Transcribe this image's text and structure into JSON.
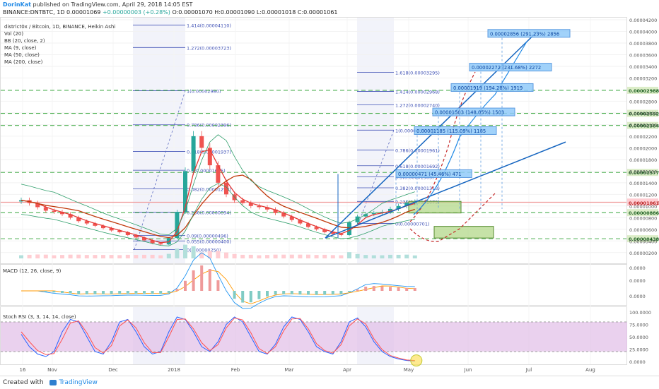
{
  "header": {
    "author": "DorinKat",
    "published": "published on TradingView.com, April 29, 2018 14:05 EST",
    "symbol": "BINANCE:DNTBTC, 1D",
    "last": "0.00001069",
    "change": "+0.00000003 (+0.28%)",
    "o": "O:0.00001070",
    "h": "H:0.00001090",
    "l": "L:0.00001018",
    "c": "C:0.00001061"
  },
  "footer": {
    "created": "Created with",
    "brand": "TradingView"
  },
  "legend": [
    "district0x / Bitcoin, 1D, BINANCE, Heikin Ashi",
    "Vol (20)",
    "BB (20, close, 2)",
    "MA (9, close)",
    "MA (50, close)",
    "MA (200, close)"
  ],
  "colors": {
    "bull": "#26a69a",
    "bear": "#ef5350",
    "ma9": "#e53935",
    "ma50": "#c0390b",
    "bb": "#2e9e6a",
    "fib": "#3f51b5",
    "green_level": "#4caf50",
    "trend": "#1565c0",
    "rsi_k": "#2962ff",
    "rsi_d": "#ff5252",
    "rsi_band": "#e1bee7"
  },
  "chart_data": [
    {
      "type": "candlestick",
      "title": "district0x / Bitcoin, 1D, BINANCE, Heikin Ashi",
      "ylim": [
        1e-07,
        4.2e-06
      ],
      "y_ticks": [
        "0.00004200",
        "0.00004000",
        "0.00003800",
        "0.00003600",
        "0.00003400",
        "0.00003200",
        "0.00002800",
        "0.00002600",
        "0.00002400",
        "0.00002200",
        "0.00002000",
        "0.00001800",
        "0.00001600",
        "0.00001400",
        "0.00001200",
        "0.00001000",
        "0.00000800",
        "0.00000600",
        "0.00000400",
        "0.00000200"
      ],
      "y_tick_values": [
        4.2e-06,
        4e-06,
        3.8e-06,
        3.6e-06,
        3.4e-06,
        3.2e-06,
        2.8e-06,
        2.6e-06,
        2.4e-06,
        2.2e-06,
        2e-06,
        1.8e-06,
        1.6e-06,
        1.4e-06,
        1.2e-06,
        1e-06,
        8e-07,
        6e-07,
        4e-07,
        2e-07
      ],
      "x_ticks": [
        "16",
        "Nov",
        "Dec",
        "2018",
        "Feb",
        "Mar",
        "Apr",
        "May",
        "Jun",
        "Jul",
        "Aug"
      ],
      "price_badges": [
        {
          "label": "0.00002988",
          "value": 2.988e-06,
          "kind": "green"
        },
        {
          "label": "0.00002592",
          "value": 2.592e-06,
          "kind": "green"
        },
        {
          "label": "0.00002384",
          "value": 2.384e-06,
          "kind": "green"
        },
        {
          "label": "0.00001577",
          "value": 1.577e-06,
          "kind": "green"
        },
        {
          "label": "0.00001068",
          "value": 1.068e-06,
          "kind": "red"
        },
        {
          "label": "0.00001061",
          "value": 1.061e-06,
          "kind": "red"
        },
        {
          "label": "0.00000886",
          "value": 8.86e-07,
          "kind": "green"
        },
        {
          "label": "0.00000438",
          "value": 4.38e-07,
          "kind": "green"
        }
      ],
      "fib_left": [
        {
          "label": "1.414(0.00004110)",
          "value": 4.11e-06
        },
        {
          "label": "1.272(0.00003723)",
          "value": 3.723e-06
        },
        {
          "label": "1(0.00002980)",
          "value": 2.98e-06
        },
        {
          "label": "0.786(0.00002396)",
          "value": 2.396e-06
        },
        {
          "label": "0.618(0.00001937)",
          "value": 1.937e-06
        },
        {
          "label": "0.5(0.00001615)",
          "value": 1.615e-06
        },
        {
          "label": "0.382(0.00001293)",
          "value": 1.293e-06
        },
        {
          "label": "0.236(0.00000894)",
          "value": 8.94e-07
        },
        {
          "label": "0.09(0.00000496)",
          "value": 4.96e-07
        },
        {
          "label": "0.055(0.00000400)",
          "value": 4e-07
        },
        {
          "label": "0(0.00000250)",
          "value": 2.5e-07
        }
      ],
      "fib_right": [
        {
          "label": "1.618(0.00003295)",
          "value": 3.295e-06
        },
        {
          "label": "1.414(0.00002968)",
          "value": 2.968e-06
        },
        {
          "label": "1.272(0.00002740)",
          "value": 2.74e-06
        },
        {
          "label": "1(0.00002304)",
          "value": 2.304e-06
        },
        {
          "label": "0.786(0.00001961)",
          "value": 1.961e-06
        },
        {
          "label": "0.618(0.00001692)",
          "value": 1.692e-06
        },
        {
          "label": "0.5(0.00001503)",
          "value": 1.503e-06
        },
        {
          "label": "0.382(0.00001313)",
          "value": 1.313e-06
        },
        {
          "label": "0.236(0.00001079)",
          "value": 1.079e-06
        },
        {
          "label": "0(0.00000701)",
          "value": 7.01e-07
        }
      ],
      "targets": [
        {
          "label": "0.00000471 (45.46%) 471",
          "value": 1.55e-06
        },
        {
          "label": "0.00001185 (115.09%) 1185",
          "value": 2.29e-06
        },
        {
          "label": "0.00001503 (148.05%) 1503",
          "value": 2.61e-06
        },
        {
          "label": "0.00001919 (194.28%) 1919",
          "value": 3.03e-06
        },
        {
          "label": "0.00002272 (231.68%) 2272",
          "value": 3.38e-06
        },
        {
          "label": "0.00002856 (291.23%) 2856",
          "value": 3.96e-06
        }
      ],
      "closes": [
        1.1e-06,
        1.05e-06,
        9.8e-07,
        9.2e-07,
        9e-07,
        8.6e-07,
        8e-07,
        7.4e-07,
        7e-07,
        6.6e-07,
        6.2e-07,
        5.8e-07,
        5.5e-07,
        5e-07,
        4.6e-07,
        4.1e-07,
        3.6e-07,
        3.4e-07,
        4.5e-07,
        9e-07,
        1.6e-06,
        2.2e-06,
        2e-06,
        1.7e-06,
        1.4e-06,
        1.2e-06,
        1.1e-06,
        1.05e-06,
        1e-06,
        9.8e-07,
        9.4e-07,
        8.8e-07,
        8.2e-07,
        7.6e-07,
        7e-07,
        6.4e-07,
        6e-07,
        5.5e-07,
        5.2e-07,
        5e-07,
        7.2e-07,
        8.2e-07,
        8.6e-07,
        8.8e-07,
        9e-07,
        9.5e-07,
        1e-06,
        1.06e-06,
        1.07e-06
      ]
    },
    {
      "type": "line",
      "title": "MACD (12, 26, close, 9)",
      "y_ticks": [
        "0.0000",
        "0.0000",
        "0.0000"
      ]
    },
    {
      "type": "line",
      "title": "Stoch RSI (3, 3, 14, 14, close)",
      "ylim": [
        0,
        100
      ],
      "y_ticks": [
        "100.0000",
        "75.0000",
        "50.0000",
        "25.0000",
        "0.0000"
      ],
      "y_tick_values": [
        100,
        75,
        50,
        25,
        0
      ],
      "k": [
        55,
        30,
        15,
        10,
        20,
        60,
        85,
        80,
        50,
        20,
        15,
        40,
        80,
        85,
        60,
        30,
        15,
        20,
        60,
        90,
        85,
        60,
        30,
        20,
        40,
        75,
        90,
        80,
        50,
        20,
        15,
        35,
        70,
        90,
        85,
        60,
        30,
        20,
        15,
        40,
        80,
        88,
        70,
        40,
        20,
        10,
        5,
        2,
        1
      ],
      "d": [
        60,
        40,
        22,
        14,
        16,
        45,
        78,
        82,
        58,
        28,
        17,
        32,
        72,
        84,
        68,
        38,
        18,
        18,
        50,
        85,
        86,
        66,
        38,
        22,
        34,
        68,
        88,
        84,
        58,
        26,
        16,
        30,
        62,
        86,
        87,
        66,
        36,
        22,
        17,
        34,
        72,
        86,
        76,
        46,
        24,
        12,
        7,
        3,
        2
      ]
    }
  ]
}
